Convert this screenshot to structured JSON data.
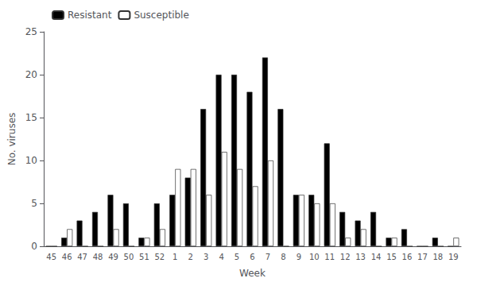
{
  "chart_data": {
    "type": "bar",
    "xlabel": "Week",
    "ylabel": "No. viruses",
    "categories": [
      "45",
      "46",
      "47",
      "48",
      "49",
      "50",
      "51",
      "52",
      "1",
      "2",
      "3",
      "4",
      "5",
      "6",
      "7",
      "8",
      "9",
      "10",
      "11",
      "12",
      "13",
      "14",
      "15",
      "16",
      "17",
      "18",
      "19"
    ],
    "series": [
      {
        "name": "Resistant",
        "color": "#000000",
        "values": [
          0,
          1,
          3,
          4,
          6,
          5,
          1,
          5,
          6,
          8,
          16,
          20,
          20,
          18,
          22,
          16,
          6,
          6,
          12,
          4,
          3,
          4,
          1,
          2,
          0,
          1,
          0
        ]
      },
      {
        "name": "Susceptible",
        "color": "#ffffff",
        "values": [
          0,
          2,
          0,
          0,
          2,
          0,
          1,
          2,
          9,
          9,
          6,
          11,
          9,
          7,
          10,
          0,
          6,
          5,
          5,
          1,
          2,
          0,
          1,
          0,
          0,
          0,
          1
        ]
      }
    ],
    "ylim": [
      0,
      25
    ],
    "yticks": [
      0,
      5,
      10,
      15,
      20,
      25
    ],
    "grid": false,
    "legend": "upper left"
  }
}
